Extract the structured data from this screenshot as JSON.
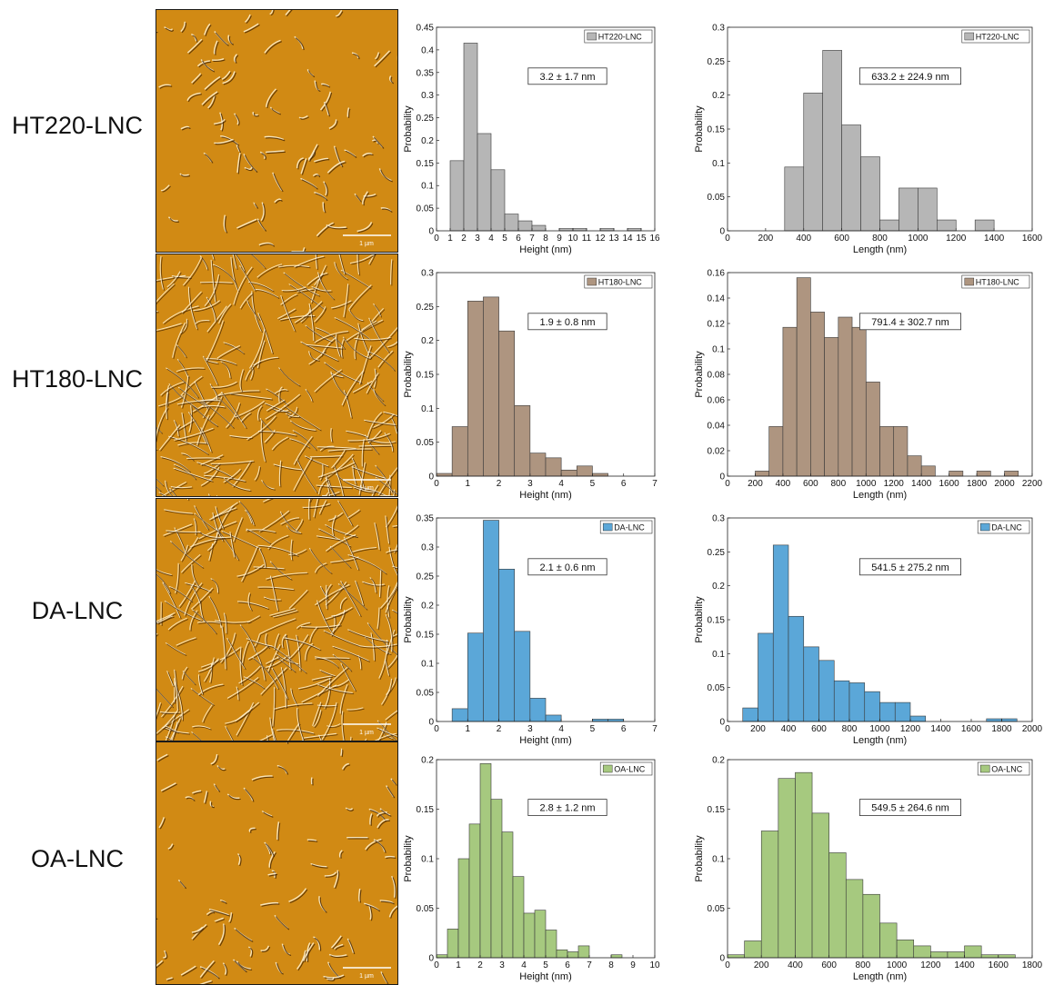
{
  "rows": [
    {
      "label": "HT220-LNC",
      "scale_label": "1 µm",
      "afm_density": "sparse"
    },
    {
      "label": "HT180-LNC",
      "scale_label": "1 µm",
      "afm_density": "dense"
    },
    {
      "label": "DA-LNC",
      "scale_label": "1 µm",
      "afm_density": "dense"
    },
    {
      "label": "OA-LNC",
      "scale_label": "1 µm",
      "afm_density": "sparse"
    }
  ],
  "colors": {
    "HT220-LNC": "#b6b6b6",
    "HT180-LNC": "#ae9580",
    "DA-LNC": "#5ba7d8",
    "OA-LNC": "#a6c97f",
    "afm_background": "#d18a14"
  },
  "chart_data": [
    {
      "type": "bar",
      "sample": "HT220-LNC",
      "quantity": "height",
      "xlabel": "Height (nm)",
      "ylabel": "Probability",
      "legend": "HT220-LNC",
      "legend_position": "top-right",
      "annotation": "3.2 ± 1.7 nm",
      "bin_width": 1,
      "bin_start": 1,
      "values": [
        0.155,
        0.415,
        0.215,
        0.135,
        0.037,
        0.022,
        0.012,
        0,
        0.005,
        0.005,
        0,
        0.005,
        0,
        0.005
      ],
      "xlim": [
        0,
        16
      ],
      "ylim": [
        0,
        0.45
      ],
      "xticks": [
        0,
        1,
        2,
        3,
        4,
        5,
        6,
        7,
        8,
        9,
        10,
        11,
        12,
        13,
        14,
        15,
        16
      ],
      "yticks": [
        0,
        0.05,
        0.1,
        0.15,
        0.2,
        0.25,
        0.3,
        0.35,
        0.4,
        0.45
      ]
    },
    {
      "type": "bar",
      "sample": "HT220-LNC",
      "quantity": "length",
      "xlabel": "Length (nm)",
      "ylabel": "Probability",
      "legend": "HT220-LNC",
      "legend_position": "top-right",
      "annotation": "633.2 ± 224.9 nm",
      "bin_width": 100,
      "bin_start": 300,
      "values": [
        0.094,
        0.203,
        0.266,
        0.156,
        0.109,
        0.016,
        0.063,
        0.063,
        0.016,
        0,
        0.016
      ],
      "xlim": [
        0,
        1600
      ],
      "ylim": [
        0,
        0.3
      ],
      "xticks": [
        0,
        200,
        400,
        600,
        800,
        1000,
        1200,
        1400,
        1600
      ],
      "yticks": [
        0,
        0.05,
        0.1,
        0.15,
        0.2,
        0.25,
        0.3
      ]
    },
    {
      "type": "bar",
      "sample": "HT180-LNC",
      "quantity": "height",
      "xlabel": "Height (nm)",
      "ylabel": "Probability",
      "legend": "HT180-LNC",
      "legend_position": "top-right",
      "annotation": "1.9 ± 0.8 nm",
      "bin_width": 0.5,
      "bin_start": 0,
      "values": [
        0.004,
        0.073,
        0.258,
        0.264,
        0.214,
        0.104,
        0.034,
        0.027,
        0.009,
        0.015,
        0.004
      ],
      "xlim": [
        0,
        7
      ],
      "ylim": [
        0,
        0.3
      ],
      "xticks": [
        0,
        1,
        2,
        3,
        4,
        5,
        6,
        7
      ],
      "yticks": [
        0,
        0.05,
        0.1,
        0.15,
        0.2,
        0.25,
        0.3
      ]
    },
    {
      "type": "bar",
      "sample": "HT180-LNC",
      "quantity": "length",
      "xlabel": "Length (nm)",
      "ylabel": "Probability",
      "legend": "HT180-LNC",
      "legend_position": "top-right",
      "annotation": "791.4 ± 302.7 nm",
      "bin_width": 100,
      "bin_start": 200,
      "values": [
        0.004,
        0.039,
        0.117,
        0.156,
        0.129,
        0.109,
        0.125,
        0.117,
        0.074,
        0.039,
        0.039,
        0.016,
        0.008,
        0,
        0.004,
        0,
        0.004,
        0,
        0.004
      ],
      "xlim": [
        0,
        2200
      ],
      "ylim": [
        0,
        0.16
      ],
      "xticks": [
        0,
        200,
        400,
        600,
        800,
        1000,
        1200,
        1400,
        1600,
        1800,
        2000,
        2200
      ],
      "yticks": [
        0,
        0.02,
        0.04,
        0.06,
        0.08,
        0.1,
        0.12,
        0.14,
        0.16
      ]
    },
    {
      "type": "bar",
      "sample": "DA-LNC",
      "quantity": "height",
      "xlabel": "Height (nm)",
      "ylabel": "Probability",
      "legend": "DA-LNC",
      "legend_position": "top-right",
      "annotation": "2.1 ± 0.6 nm",
      "bin_width": 0.5,
      "bin_start": 0.5,
      "values": [
        0.022,
        0.152,
        0.346,
        0.262,
        0.155,
        0.04,
        0.011,
        0,
        0,
        0.004,
        0.004
      ],
      "xlim": [
        0,
        7
      ],
      "ylim": [
        0,
        0.35
      ],
      "xticks": [
        0,
        1,
        2,
        3,
        4,
        5,
        6,
        7
      ],
      "yticks": [
        0,
        0.05,
        0.1,
        0.15,
        0.2,
        0.25,
        0.3,
        0.35
      ]
    },
    {
      "type": "bar",
      "sample": "DA-LNC",
      "quantity": "length",
      "xlabel": "Length (nm)",
      "ylabel": "Probability",
      "legend": "DA-LNC",
      "legend_position": "top-right",
      "annotation": "541.5 ± 275.2 nm",
      "bin_width": 100,
      "bin_start": 100,
      "values": [
        0.02,
        0.13,
        0.26,
        0.155,
        0.11,
        0.09,
        0.06,
        0.057,
        0.044,
        0.028,
        0.028,
        0.008,
        0,
        0,
        0,
        0,
        0.004,
        0.004
      ],
      "xlim": [
        0,
        2000
      ],
      "ylim": [
        0,
        0.3
      ],
      "xticks": [
        0,
        200,
        400,
        600,
        800,
        1000,
        1200,
        1400,
        1600,
        1800,
        2000
      ],
      "yticks": [
        0,
        0.05,
        0.1,
        0.15,
        0.2,
        0.25,
        0.3
      ]
    },
    {
      "type": "bar",
      "sample": "OA-LNC",
      "quantity": "height",
      "xlabel": "Height (nm)",
      "ylabel": "Probability",
      "legend": "OA-LNC",
      "legend_position": "top-right",
      "annotation": "2.8 ± 1.2 nm",
      "bin_width": 0.5,
      "bin_start": 0,
      "values": [
        0.003,
        0.029,
        0.1,
        0.135,
        0.196,
        0.16,
        0.127,
        0.082,
        0.045,
        0.048,
        0.028,
        0.008,
        0.006,
        0.012,
        0,
        0,
        0.003
      ],
      "xlim": [
        0,
        10
      ],
      "ylim": [
        0,
        0.2
      ],
      "xticks": [
        0,
        1,
        2,
        3,
        4,
        5,
        6,
        7,
        8,
        9,
        10
      ],
      "yticks": [
        0,
        0.05,
        0.1,
        0.15,
        0.2
      ]
    },
    {
      "type": "bar",
      "sample": "OA-LNC",
      "quantity": "length",
      "xlabel": "Length (nm)",
      "ylabel": "Probability",
      "legend": "OA-LNC",
      "legend_position": "top-right",
      "annotation": "549.5 ± 264.6 nm",
      "bin_width": 100,
      "bin_start": 0,
      "values": [
        0.003,
        0.017,
        0.128,
        0.181,
        0.187,
        0.146,
        0.106,
        0.079,
        0.064,
        0.035,
        0.018,
        0.012,
        0.006,
        0.006,
        0.012,
        0.003,
        0.003
      ],
      "xlim": [
        0,
        1800
      ],
      "ylim": [
        0,
        0.2
      ],
      "xticks": [
        0,
        200,
        400,
        600,
        800,
        1000,
        1200,
        1400,
        1600,
        1800
      ],
      "yticks": [
        0,
        0.05,
        0.1,
        0.15,
        0.2
      ]
    }
  ]
}
